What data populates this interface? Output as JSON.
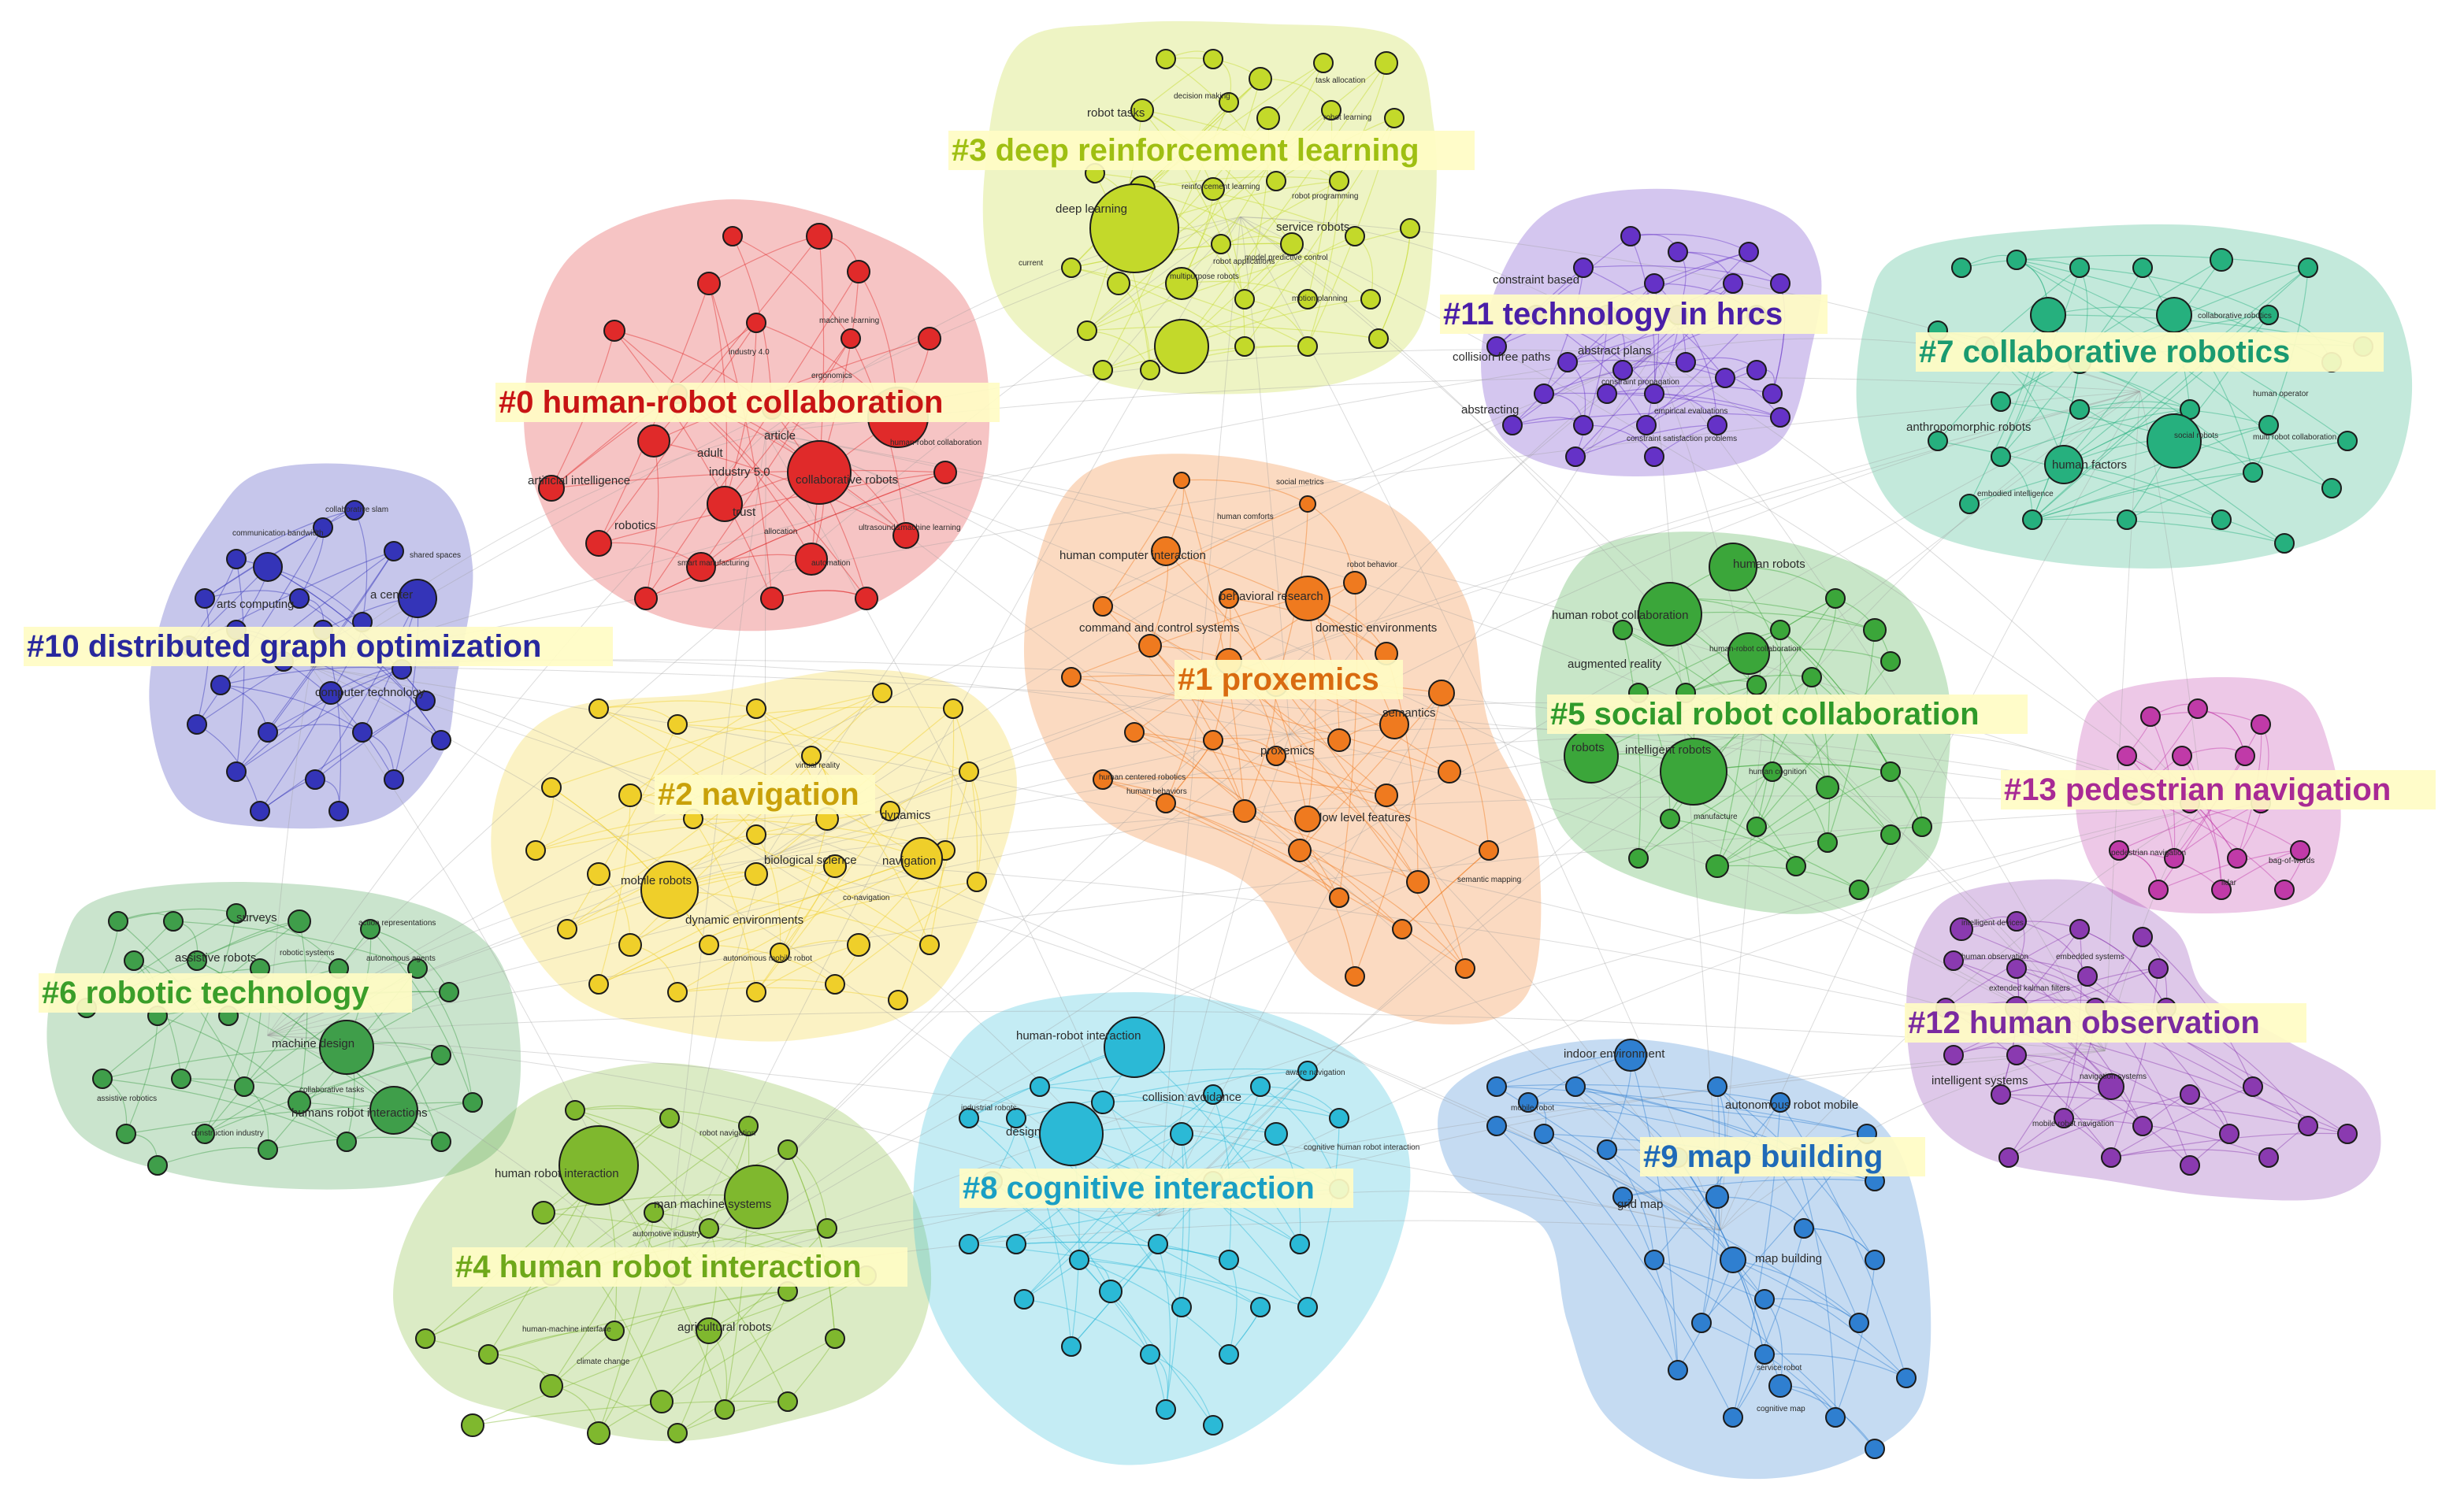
{
  "colors": {
    "c0": "#e02a2a",
    "c1": "#ef7a1f",
    "c2": "#efcf2a",
    "c3": "#c3d92a",
    "c4": "#7fb82e",
    "c5": "#3ba63a",
    "c6": "#3f9e4a",
    "c7": "#26b07e",
    "c8": "#2bb9d6",
    "c9": "#2f7fd0",
    "c10": "#3434b8",
    "c11": "#6532c7",
    "c12": "#8a3ab0",
    "c13": "#c03aa8"
  },
  "clusters": [
    {
      "id": "c0",
      "label": "#0 human-robot collaboration",
      "text_color": "#c81414",
      "keywords": [
        "machine learning",
        "industry 4.0",
        "ergonomics",
        "human-robot collaboration",
        "adult",
        "industry 5.0",
        "article",
        "artificial intelligence",
        "collaborative robots",
        "robotics",
        "trust",
        "allocation",
        "ultrasound&machine learning",
        "smart manufacturing",
        "automation"
      ]
    },
    {
      "id": "c1",
      "label": "#1 proxemics",
      "text_color": "#d96b10",
      "keywords": [
        "social metrics",
        "human comforts",
        "human computer interaction",
        "robot behavior",
        "behavioral research",
        "command and control systems",
        "domestic environments",
        "semantics",
        "proxemics",
        "human centered robotics",
        "human behaviors",
        "low level features",
        "semantic mapping"
      ]
    },
    {
      "id": "c2",
      "label": "#2 navigation",
      "text_color": "#c9a10a",
      "keywords": [
        "virtual reality",
        "dynamics",
        "mobile robots",
        "biological science",
        "navigation",
        "co-navigation",
        "dynamic environments",
        "autonomous mobile robot"
      ]
    },
    {
      "id": "c3",
      "label": "#3 deep reinforcement learning",
      "text_color": "#9fbf12",
      "keywords": [
        "task allocation",
        "decision making",
        "robot tasks",
        "robot learning",
        "reinforcement learning",
        "robot programming",
        "deep learning",
        "service robots",
        "current",
        "multipurpose robots",
        "robot applications",
        "model predictive control",
        "motion planning"
      ]
    },
    {
      "id": "c4",
      "label": "#4 human robot interaction",
      "text_color": "#6ea81a",
      "keywords": [
        "robot navigation",
        "human robot interaction",
        "man machine systems",
        "automotive industry",
        "human-machine interface",
        "agricultural robots",
        "climate change"
      ]
    },
    {
      "id": "c5",
      "label": "#5 social robot collaboration",
      "text_color": "#2f9a2a",
      "keywords": [
        "human robots",
        "human robot collaboration",
        "human-robot collaboration",
        "augmented reality",
        "robots",
        "intelligent robots",
        "human cognition",
        "manufacture"
      ]
    },
    {
      "id": "c6",
      "label": "#6 robotic technology",
      "text_color": "#3a9e2a",
      "keywords": [
        "surveys",
        "action representations",
        "assistive robots",
        "robotic systems",
        "autonomous agents",
        "machine design",
        "collaborative tasks",
        "assistive robotics",
        "humans robot interactions",
        "construction industry"
      ]
    },
    {
      "id": "c7",
      "label": "#7 collaborative robotics",
      "text_color": "#1a9a70",
      "keywords": [
        "collaborative robotics",
        "human operator",
        "anthropomorphic robots",
        "social robots",
        "multi robot collaboration",
        "human factors",
        "embodied intelligence"
      ]
    },
    {
      "id": "c8",
      "label": "#8 cognitive interaction",
      "text_color": "#1a9fc4",
      "keywords": [
        "human-robot interaction",
        "aware navigation",
        "collision avoidance",
        "industrial robots",
        "design",
        "cognitive human robot interaction"
      ]
    },
    {
      "id": "c9",
      "label": "#9 map building",
      "text_color": "#1f6ab8",
      "keywords": [
        "indoor environment",
        "mobile robot",
        "autonomous robot mobile",
        "grid map",
        "map building",
        "service robot",
        "cognitive map"
      ]
    },
    {
      "id": "c10",
      "label": "#10 distributed graph optimization",
      "text_color": "#28289e",
      "keywords": [
        "collaborative slam",
        "communication bandwidth",
        "shared spaces",
        "arts computing",
        "a center",
        "computer technology"
      ]
    },
    {
      "id": "c11",
      "label": "#11 technology in hrcs",
      "text_color": "#4a1fa8",
      "keywords": [
        "constraint based",
        "abstract plans",
        "collision free paths",
        "constraint propagation",
        "abstracting",
        "empirical evaluations",
        "constraint satisfaction problems"
      ]
    },
    {
      "id": "c12",
      "label": "#12 human observation",
      "text_color": "#7a2aa0",
      "keywords": [
        "intelligent devices",
        "human observation",
        "embedded systems",
        "extended kalman filters",
        "intelligent systems",
        "navigation systems",
        "mobile robot navigation"
      ]
    },
    {
      "id": "c13",
      "label": "#13 pedestrian navigation",
      "text_color": "#a82a95",
      "keywords": [
        "pedestrian navigation",
        "bag-of-words",
        "lidar"
      ]
    }
  ]
}
